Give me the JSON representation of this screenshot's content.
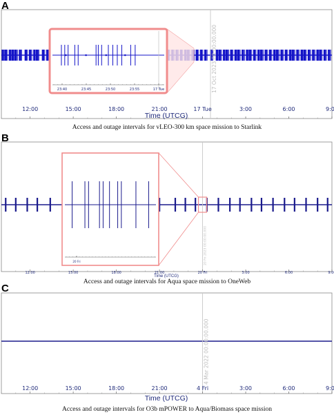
{
  "figure": {
    "panels": [
      {
        "letter": "A",
        "caption": "Access and outage intervals for vLEO-300 km space mission to Starlink"
      },
      {
        "letter": "B",
        "caption": "Access and outage intervals for Aqua space mission to OneWeb"
      },
      {
        "letter": "C",
        "caption": "Access and outage intervals for O3b mPOWER to Aqua/Biomass space mission"
      }
    ]
  },
  "colors": {
    "series": "#1414c8",
    "series_dark": "#1a1a8c",
    "zoom": "#f08c8c",
    "axis_text": "#1f2a7a",
    "cursor": "#c8c8c8"
  },
  "chart_data": [
    {
      "type": "timeline",
      "panel": "A",
      "xlabel": "Time (UTCG)",
      "x_ticks": [
        "12:00",
        "15:00",
        "18:00",
        "21:00",
        "17 Tue",
        "3:00",
        "6:00",
        "9:00"
      ],
      "x_range_hours": [
        10,
        33
      ],
      "cursor": {
        "time_hours": 24.55,
        "label": "17 Oct 2023 00:00:00.000"
      },
      "access_bursts_hours": [
        10.1,
        10.3,
        10.6,
        10.8,
        11.0,
        11.3,
        11.7,
        12.0,
        12.3,
        12.5,
        12.9,
        13.2,
        13.4,
        13.6,
        13.9,
        14.2,
        14.4,
        14.8,
        15.1,
        15.3,
        15.6,
        15.9,
        16.2,
        16.4,
        16.8,
        17.1,
        17.3,
        17.6,
        17.9,
        18.2,
        18.4,
        18.8,
        19.1,
        19.3,
        19.6,
        19.9,
        20.2,
        20.5,
        20.8,
        21.1,
        21.3,
        21.6,
        21.9,
        22.2,
        22.5,
        22.8,
        23.0,
        23.3,
        23.6,
        23.9,
        24.2,
        24.6,
        25.0,
        25.2,
        25.5,
        25.7,
        26.0,
        26.3,
        26.5,
        26.8,
        27.1,
        27.3,
        27.6,
        27.9,
        28.1,
        28.4,
        28.7,
        29.0,
        29.2,
        29.5,
        29.8,
        30.1,
        30.3,
        30.6,
        30.9,
        31.1,
        31.4,
        31.7,
        32.0,
        32.2,
        32.5,
        32.8
      ],
      "inset": {
        "ticks": [
          "23:40",
          "23:45",
          "23:50",
          "23:55",
          "17 Tue"
        ],
        "spikes": [
          0.08,
          0.11,
          0.14,
          0.2,
          0.23,
          0.39,
          0.41,
          0.44,
          0.5,
          0.54,
          0.58,
          0.62,
          0.7,
          0.74
        ]
      }
    },
    {
      "type": "timeline",
      "panel": "B",
      "xlabel": "Time (UTCG)",
      "x_ticks": [
        "12:00",
        "15:00",
        "18:00",
        "21:00",
        "20 Fri",
        "3:00",
        "6:00",
        "9:00"
      ],
      "x_range_hours": [
        10,
        33
      ],
      "cursor": {
        "time_hours": 24.0,
        "label": "20 Fri 2023 00:00:00.000"
      },
      "access_bursts_hours": [
        10.3,
        11.0,
        11.8,
        12.5,
        13.4,
        15.8,
        16.5,
        17.3,
        18.0,
        18.8,
        19.5,
        20.3,
        21.0,
        22.1,
        22.8,
        23.5,
        24.3,
        25.1,
        25.9,
        26.6,
        27.4,
        28.1,
        28.9,
        29.7,
        30.4,
        31.2,
        32.0,
        32.7
      ],
      "inset": {
        "ticks": [
          "20 Fri"
        ],
        "spikes": [
          0.08,
          0.22,
          0.26,
          0.38,
          0.42,
          0.49,
          0.58,
          0.62,
          0.78,
          0.92
        ]
      }
    },
    {
      "type": "timeline",
      "panel": "C",
      "xlabel": "Time (UTCG)",
      "x_ticks": [
        "12:00",
        "15:00",
        "18:00",
        "21:00",
        "4 Fri",
        "3:00",
        "6:00",
        "9:00"
      ],
      "x_range_hours": [
        10,
        33
      ],
      "cursor": {
        "time_hours": 24.0,
        "label": "4 Mar 2022 00:00:00.000"
      },
      "access_bursts_hours": []
    }
  ]
}
